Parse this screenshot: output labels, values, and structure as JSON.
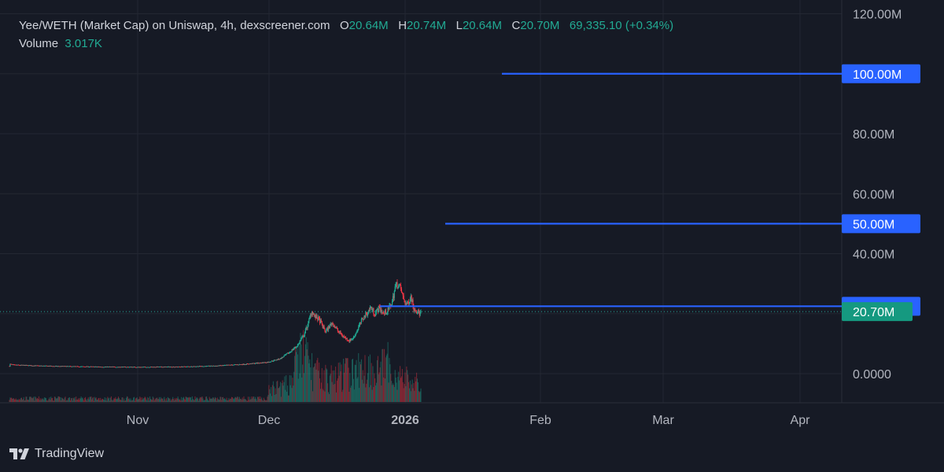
{
  "header": {
    "title": "Yee/WETH (Market Cap) on Uniswap, 4h, dexscreener.com",
    "o_label": "O",
    "o_value": "20.64M",
    "h_label": "H",
    "h_value": "20.74M",
    "l_label": "L",
    "l_value": "20.64M",
    "c_label": "C",
    "c_value": "20.70M",
    "change": "69,335.10 (+0.34%)",
    "volume_label": "Volume",
    "volume_value": "3.017K"
  },
  "brand": {
    "name": "TradingView"
  },
  "colors": {
    "up": "#22ab94",
    "down": "#f23645",
    "hline": "#2962ff",
    "bg": "#161a25",
    "grid": "#232732"
  },
  "chart_data": {
    "type": "candlestick",
    "y_axis": {
      "ticks": [
        0,
        40,
        60,
        80,
        120
      ],
      "tick_labels": [
        "0.0000",
        "40.00M",
        "60.00M",
        "80.00M",
        "120.00M"
      ],
      "unit": "M"
    },
    "x_axis": {
      "tick_labels": [
        "Nov",
        "Dec",
        "2026",
        "Feb",
        "Mar",
        "Apr"
      ]
    },
    "horizontal_lines": [
      {
        "value": 100,
        "label": "100.00M"
      },
      {
        "value": 50,
        "label": "50.00M"
      },
      {
        "value": 22.47,
        "label": "22.47M"
      }
    ],
    "last_price": {
      "value": 20.7,
      "label": "20.70M"
    },
    "price_path": [
      [
        0,
        2.5
      ],
      [
        0.05,
        2.7
      ],
      [
        0.07,
        4.3
      ],
      [
        0.1,
        3.2
      ],
      [
        1,
        2.9
      ],
      [
        5,
        2.7
      ],
      [
        10,
        2.5
      ],
      [
        20,
        2.3
      ],
      [
        30,
        2.2
      ],
      [
        40,
        2.3
      ],
      [
        48,
        2.6
      ],
      [
        55,
        3.2
      ],
      [
        60,
        3.8
      ],
      [
        63,
        5.0
      ],
      [
        65,
        7.0
      ],
      [
        67,
        9.5
      ],
      [
        68.5,
        13
      ],
      [
        69.5,
        17
      ],
      [
        70.3,
        21
      ],
      [
        71,
        19
      ],
      [
        72,
        18
      ],
      [
        73.5,
        14
      ],
      [
        75,
        17
      ],
      [
        76.5,
        14
      ],
      [
        78,
        12
      ],
      [
        79,
        11
      ],
      [
        80,
        12
      ],
      [
        81,
        15
      ],
      [
        82,
        18
      ],
      [
        83,
        20
      ],
      [
        84,
        22
      ],
      [
        85,
        20
      ],
      [
        86,
        22
      ],
      [
        87,
        20
      ],
      [
        88,
        21
      ],
      [
        89,
        24
      ],
      [
        89.7,
        29
      ],
      [
        90.3,
        30
      ],
      [
        91,
        28
      ],
      [
        91.8,
        24
      ],
      [
        92.5,
        23
      ],
      [
        93.3,
        26
      ],
      [
        94,
        22
      ],
      [
        94.7,
        21
      ],
      [
        95.3,
        20
      ],
      [
        95.8,
        20.7
      ]
    ],
    "volume_path": [
      [
        60,
        4
      ],
      [
        65,
        6
      ],
      [
        68,
        18
      ],
      [
        70,
        12
      ],
      [
        72,
        9
      ],
      [
        75,
        8
      ],
      [
        78,
        10
      ],
      [
        80,
        10
      ],
      [
        83,
        12
      ],
      [
        86,
        11
      ],
      [
        88,
        13
      ],
      [
        90,
        9
      ],
      [
        92,
        8
      ],
      [
        95,
        6
      ]
    ]
  }
}
